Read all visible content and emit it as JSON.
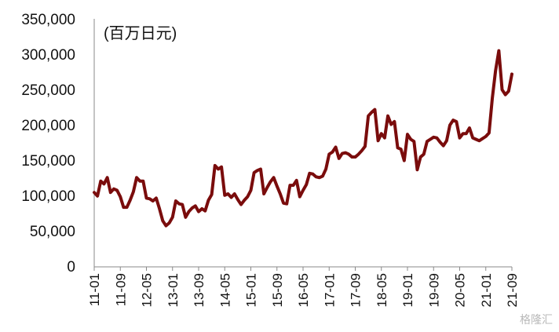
{
  "chart_data": {
    "type": "line",
    "title": "",
    "unit_label": "(百万日元)",
    "xlabel": "",
    "ylabel": "",
    "ylim": [
      0,
      350000
    ],
    "y_ticks": [
      "0",
      "50,000",
      "100,000",
      "150,000",
      "200,000",
      "250,000",
      "300,000",
      "350,000"
    ],
    "x_ticks": [
      "11-01",
      "11-09",
      "12-05",
      "13-01",
      "13-09",
      "14-05",
      "15-01",
      "15-09",
      "16-05",
      "17-01",
      "17-09",
      "18-05",
      "19-01",
      "19-09",
      "20-05",
      "21-01",
      "21-09"
    ],
    "line_color": "#7a0c0c",
    "series": [
      {
        "values": [
          105000,
          100000,
          121000,
          117000,
          126000,
          105000,
          110000,
          108000,
          99000,
          84000,
          84000,
          94000,
          106000,
          126000,
          121000,
          121000,
          97000,
          96000,
          93000,
          97000,
          82000,
          65000,
          58000,
          62000,
          70000,
          93000,
          89000,
          88000,
          70000,
          78000,
          83000,
          86000,
          78000,
          82000,
          79000,
          94000,
          102000,
          143000,
          138000,
          141000,
          101000,
          103000,
          98000,
          103000,
          95000,
          88000,
          94000,
          99000,
          108000,
          133000,
          136000,
          138000,
          103000,
          112000,
          120000,
          126000,
          114000,
          103000,
          90000,
          89000,
          115000,
          115000,
          122000,
          99000,
          108000,
          116000,
          132000,
          131000,
          127000,
          126000,
          128000,
          138000,
          159000,
          162000,
          169000,
          153000,
          160000,
          161000,
          159000,
          155000,
          155000,
          159000,
          164000,
          170000,
          213000,
          218000,
          222000,
          178000,
          188000,
          182000,
          213000,
          201000,
          205000,
          168000,
          166000,
          150000,
          187000,
          180000,
          177000,
          137000,
          155000,
          159000,
          177000,
          180000,
          183000,
          182000,
          176000,
          171000,
          178000,
          200000,
          207000,
          205000,
          182000,
          188000,
          188000,
          196000,
          182000,
          180000,
          178000,
          181000,
          184000,
          189000,
          238000,
          277000,
          305000,
          250000,
          243000,
          248000,
          272000
        ]
      }
    ],
    "grid": false,
    "legend": "none"
  },
  "watermark": "格隆汇"
}
